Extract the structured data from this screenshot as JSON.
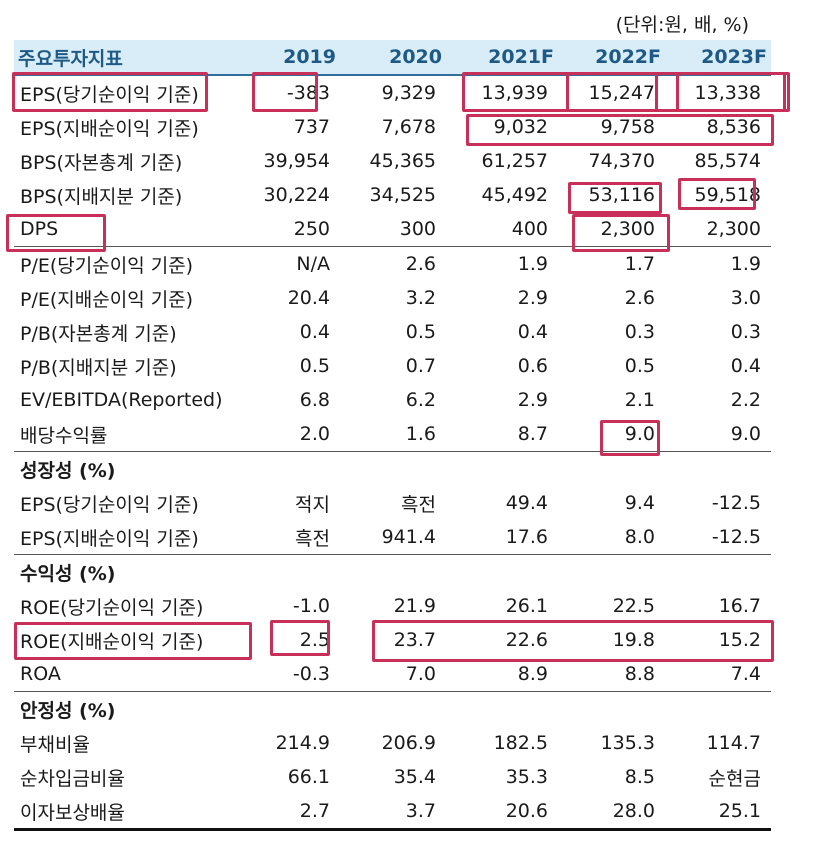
{
  "unit_note": "(단위:원, 배, %)",
  "header": {
    "label": "주요투자지표",
    "years": [
      "2019",
      "2020",
      "2021F",
      "2022F",
      "2023F"
    ]
  },
  "rows": [
    {
      "type": "data",
      "label": "EPS(당기순이익 기준)",
      "values": [
        "-383",
        "9,329",
        "13,939",
        "15,247",
        "13,338"
      ]
    },
    {
      "type": "data",
      "label": "EPS(지배순이익 기준)",
      "values": [
        "737",
        "7,678",
        "9,032",
        "9,758",
        "8,536"
      ]
    },
    {
      "type": "data",
      "label": "BPS(자본총계 기준)",
      "values": [
        "39,954",
        "45,365",
        "61,257",
        "74,370",
        "85,574"
      ]
    },
    {
      "type": "data",
      "label": "BPS(지배지분 기준)",
      "values": [
        "30,224",
        "34,525",
        "45,492",
        "53,116",
        "59,518"
      ]
    },
    {
      "type": "data",
      "label": "DPS",
      "values": [
        "250",
        "300",
        "400",
        "2,300",
        "2,300"
      ]
    },
    {
      "type": "data",
      "label": "P/E(당기순이익 기준)",
      "values": [
        "N/A",
        "2.6",
        "1.9",
        "1.7",
        "1.9"
      ],
      "first": true
    },
    {
      "type": "data",
      "label": "P/E(지배순이익 기준)",
      "values": [
        "20.4",
        "3.2",
        "2.9",
        "2.6",
        "3.0"
      ]
    },
    {
      "type": "data",
      "label": "P/B(자본총계 기준)",
      "values": [
        "0.4",
        "0.5",
        "0.4",
        "0.3",
        "0.3"
      ]
    },
    {
      "type": "data",
      "label": "P/B(지배지분 기준)",
      "values": [
        "0.5",
        "0.7",
        "0.6",
        "0.5",
        "0.4"
      ]
    },
    {
      "type": "data",
      "label": "EV/EBITDA(Reported)",
      "values": [
        "6.8",
        "6.2",
        "2.9",
        "2.1",
        "2.2"
      ]
    },
    {
      "type": "data",
      "label": "배당수익률",
      "values": [
        "2.0",
        "1.6",
        "8.7",
        "9.0",
        "9.0"
      ]
    },
    {
      "type": "section",
      "label": "성장성 (%)"
    },
    {
      "type": "data",
      "label": "EPS(당기순이익 기준)",
      "values": [
        "적지",
        "흑전",
        "49.4",
        "9.4",
        "-12.5"
      ]
    },
    {
      "type": "data",
      "label": "EPS(지배순이익 기준)",
      "values": [
        "흑전",
        "941.4",
        "17.6",
        "8.0",
        "-12.5"
      ]
    },
    {
      "type": "section",
      "label": "수익성 (%)"
    },
    {
      "type": "data",
      "label": "ROE(당기순이익 기준)",
      "values": [
        "-1.0",
        "21.9",
        "26.1",
        "22.5",
        "16.7"
      ]
    },
    {
      "type": "data",
      "label": "ROE(지배순이익 기준)",
      "values": [
        "2.5",
        "23.7",
        "22.6",
        "19.8",
        "15.2"
      ]
    },
    {
      "type": "data",
      "label": "ROA",
      "values": [
        "-0.3",
        "7.0",
        "8.9",
        "8.8",
        "7.4"
      ]
    },
    {
      "type": "section",
      "label": "안정성 (%)"
    },
    {
      "type": "data",
      "label": "부채비율",
      "values": [
        "214.9",
        "206.9",
        "182.5",
        "135.3",
        "114.7"
      ]
    },
    {
      "type": "data",
      "label": "순차입금비율",
      "values": [
        "66.1",
        "35.4",
        "35.3",
        "8.5",
        "순현금"
      ]
    },
    {
      "type": "data",
      "label": "이자보상배율",
      "values": [
        "2.7",
        "3.7",
        "20.6",
        "28.0",
        "25.1"
      ],
      "last": true
    }
  ],
  "highlight_color": "#c8305a"
}
